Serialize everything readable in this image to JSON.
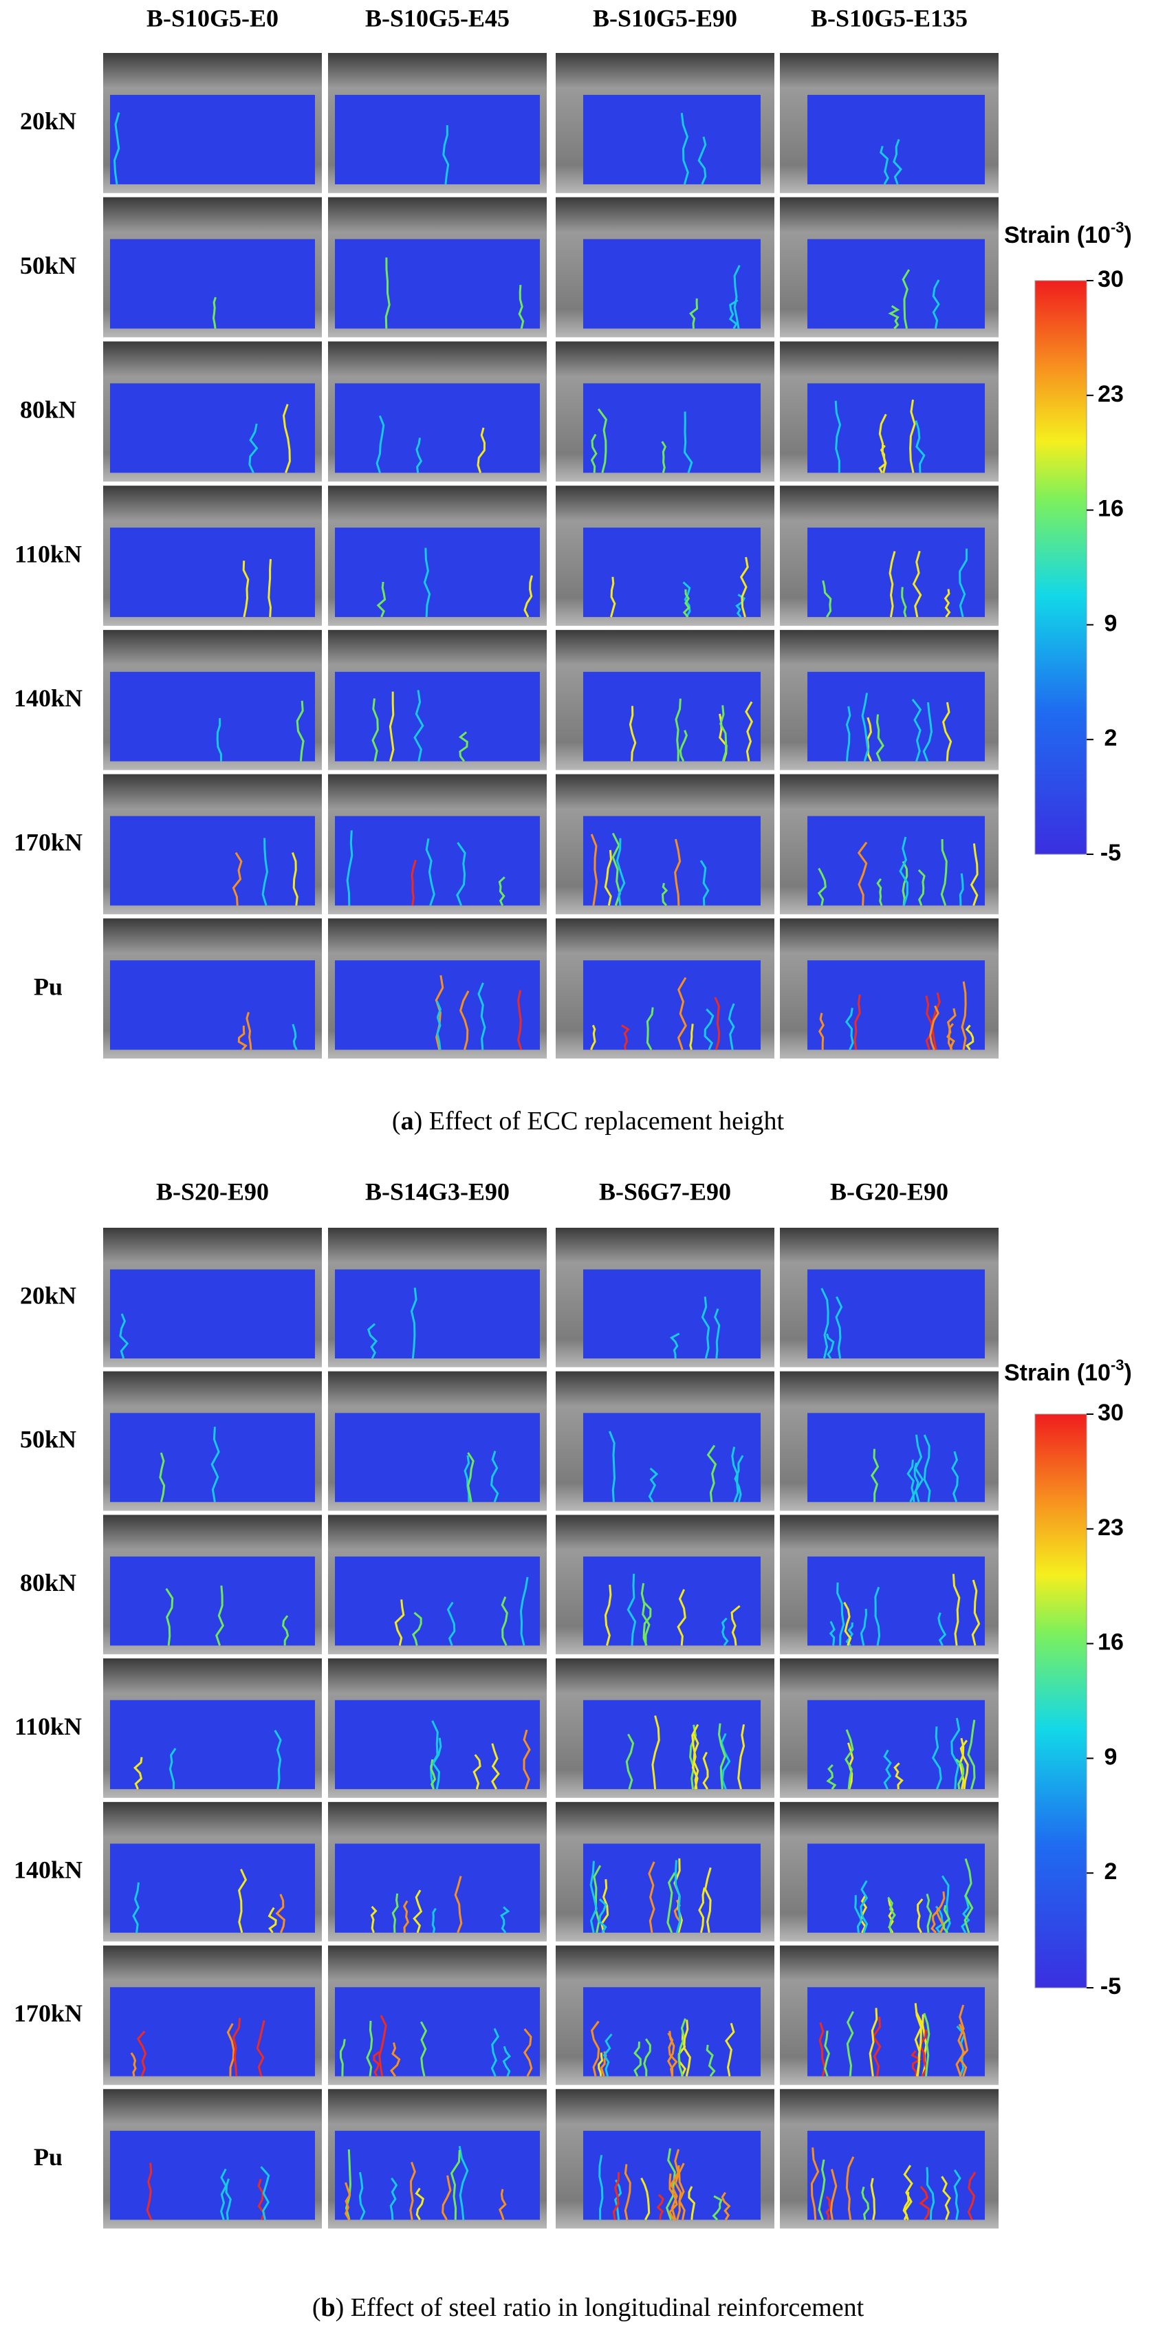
{
  "panels": [
    {
      "columns": [
        "B-S10G5-E0",
        "B-S10G5-E45",
        "B-S10G5-E90",
        "B-S10G5-E135"
      ],
      "rows": [
        "20kN",
        "50kN",
        "80kN",
        "110kN",
        "140kN",
        "170kN",
        "Pu"
      ],
      "colorbar": {
        "title": "Strain (10",
        "exponent": "-3",
        "title_end": ")",
        "range": [
          -5,
          30
        ],
        "ticks": [
          30,
          23,
          16,
          9,
          2,
          -5
        ]
      },
      "caption": {
        "open": "(",
        "letter": "a",
        "rest": ") Effect of ECC replacement height"
      }
    },
    {
      "columns": [
        "B-S20-E90",
        "B-S14G3-E90",
        "B-S6G7-E90",
        "B-G20-E90"
      ],
      "rows": [
        "20kN",
        "50kN",
        "80kN",
        "110kN",
        "140kN",
        "170kN",
        "Pu"
      ],
      "colorbar": {
        "title": "Strain (10",
        "exponent": "-3",
        "title_end": ")",
        "range": [
          -5,
          30
        ],
        "ticks": [
          30,
          23,
          16,
          9,
          2,
          -5
        ]
      },
      "caption": {
        "open": "(",
        "letter": "b",
        "rest": ") Effect of steel ratio in longitudinal reinforcement"
      }
    }
  ]
}
